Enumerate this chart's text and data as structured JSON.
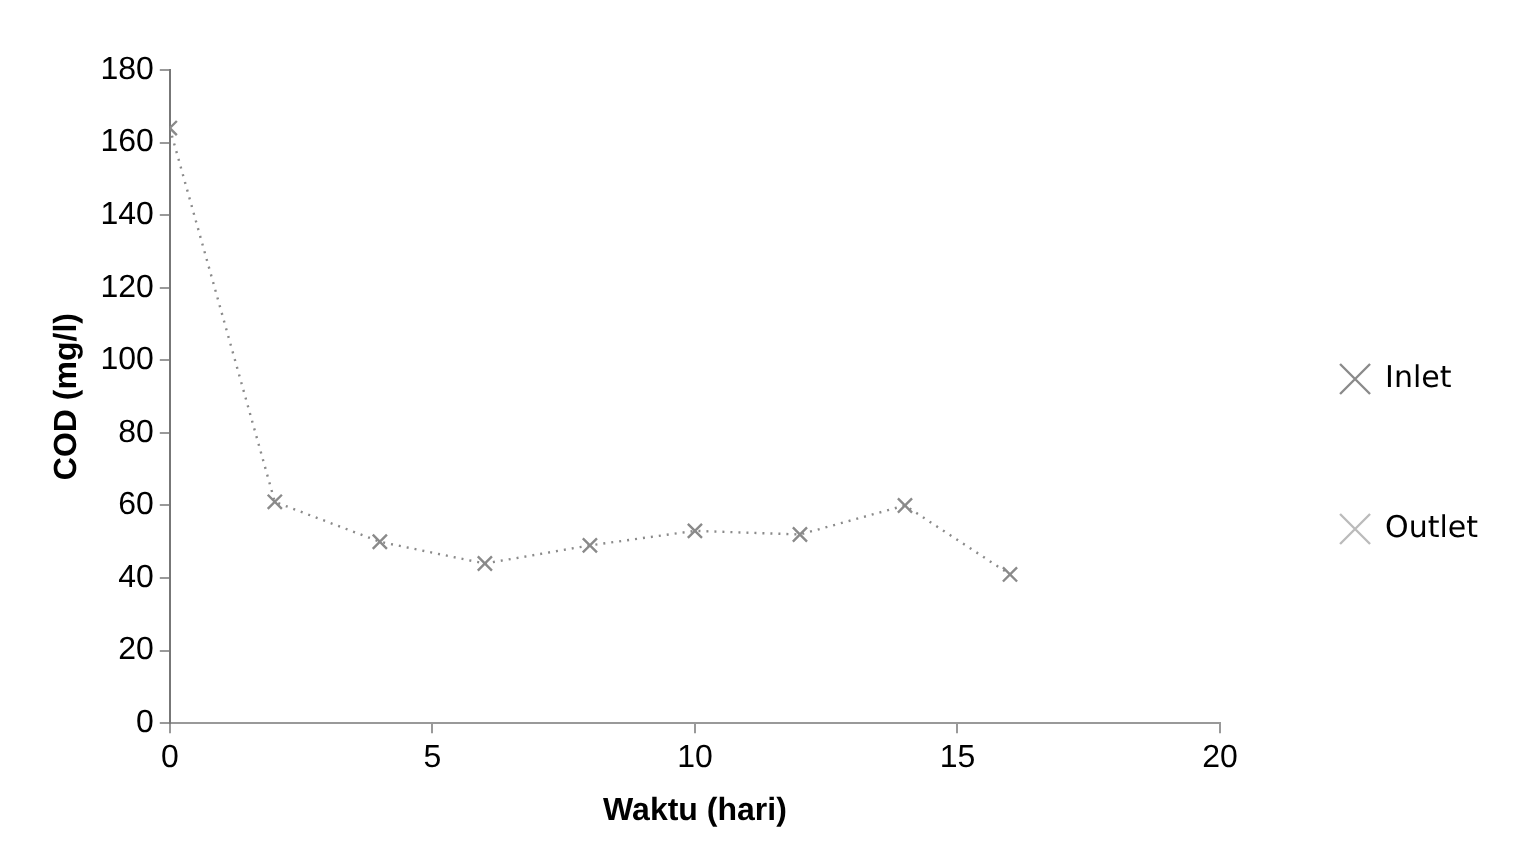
{
  "chart_data": {
    "type": "line",
    "xlabel": "Waktu (hari)",
    "ylabel": "COD (mg/l)",
    "x": [
      0,
      2,
      4,
      6,
      8,
      10,
      12,
      14,
      16
    ],
    "series": [
      {
        "name": "Inlet",
        "color": "#8a8a8a",
        "values": [
          164,
          61,
          50,
          44,
          49,
          53,
          52,
          60,
          41
        ]
      },
      {
        "name": "Outlet",
        "color": "#bbbbbb",
        "values": [
          null,
          null,
          null,
          null,
          null,
          null,
          null,
          null,
          null
        ]
      }
    ],
    "xlim": [
      0,
      20
    ],
    "xticks": [
      0,
      5,
      10,
      15,
      20
    ],
    "ylim": [
      0,
      180
    ],
    "yticks": [
      0,
      20,
      40,
      60,
      80,
      100,
      120,
      140,
      160,
      180
    ],
    "grid": false,
    "legend": "right",
    "marker": "cross",
    "line_style": "dotted"
  }
}
